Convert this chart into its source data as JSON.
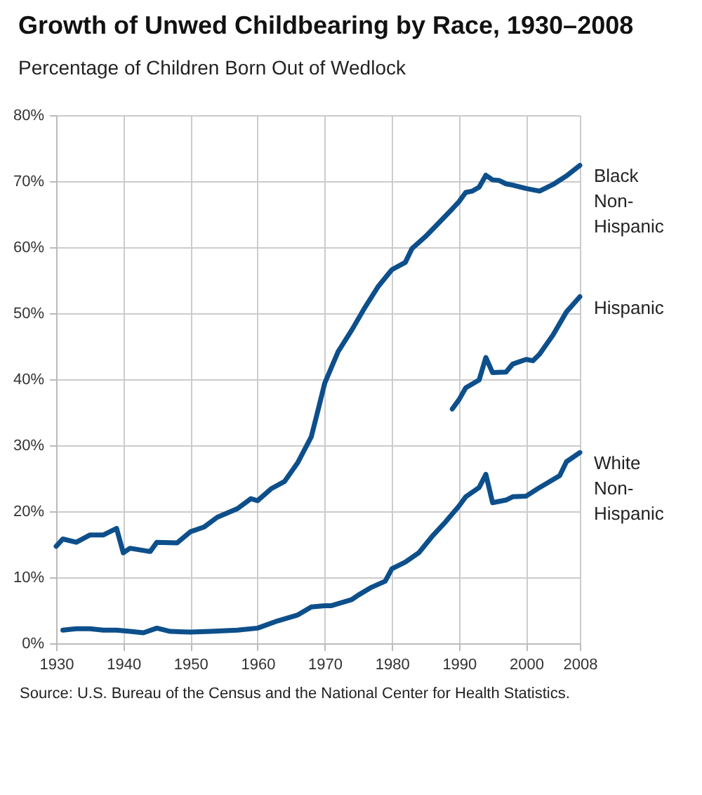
{
  "chart_data": {
    "type": "line",
    "title": "Growth of Unwed Childbearing by Race, 1930–2008",
    "subtitle": "Percentage of Children Born Out of Wedlock",
    "annotations": [
      "Source: U.S. Bureau of the Census and the National Center for Health Statistics."
    ],
    "xlim": [
      1930,
      2008
    ],
    "xticks": [
      1930,
      1940,
      1950,
      1960,
      1970,
      1980,
      1990,
      2000,
      2008
    ],
    "ylim": [
      0,
      80
    ],
    "yticks": [
      {
        "value": 0,
        "label": "0%"
      },
      {
        "value": 10,
        "label": "10%"
      },
      {
        "value": 20,
        "label": "20%"
      },
      {
        "value": 30,
        "label": "30%"
      },
      {
        "value": 40,
        "label": "40%"
      },
      {
        "value": 50,
        "label": "50%"
      },
      {
        "value": 60,
        "label": "60%"
      },
      {
        "value": 70,
        "label": "70%"
      },
      {
        "value": 80,
        "label": "80%"
      }
    ],
    "grid": true,
    "legend": false,
    "marker": "none",
    "line_style": "solid",
    "series": [
      {
        "name": "Black Non-Hispanic",
        "color": "#0d4f8b",
        "x": [
          1930,
          1931,
          1933,
          1935,
          1937,
          1939,
          1940,
          1941,
          1944,
          1945,
          1948,
          1950,
          1952,
          1954,
          1957,
          1959,
          1960,
          1962,
          1964,
          1966,
          1968,
          1969,
          1970,
          1972,
          1974,
          1976,
          1978,
          1980,
          1982,
          1983,
          1985,
          1987,
          1989,
          1990,
          1991,
          1992,
          1993,
          1994,
          1995,
          1996,
          1997,
          1998,
          2000,
          2002,
          2004,
          2006,
          2008
        ],
        "values": [
          14.7,
          15.8,
          15.3,
          16.4,
          16.4,
          17.4,
          13.7,
          14.4,
          13.9,
          15.3,
          15.2,
          16.9,
          17.6,
          19.1,
          20.4,
          21.9,
          21.6,
          23.4,
          24.5,
          27.4,
          31.3,
          35.3,
          39.4,
          44.2,
          47.4,
          50.9,
          54.1,
          56.6,
          57.7,
          59.8,
          61.6,
          63.7,
          65.8,
          66.9,
          68.3,
          68.5,
          69.1,
          70.9,
          70.2,
          70.1,
          69.6,
          69.4,
          68.9,
          68.5,
          69.5,
          70.8,
          72.4
        ]
      },
      {
        "name": "Hispanic",
        "color": "#0d4f8b",
        "x": [
          1989,
          1990,
          1991,
          1993,
          1994,
          1995,
          1997,
          1998,
          2000,
          2001,
          2002,
          2004,
          2006,
          2008
        ],
        "values": [
          35.5,
          36.9,
          38.7,
          39.9,
          43.3,
          41.0,
          41.1,
          42.3,
          43.0,
          42.8,
          43.8,
          46.7,
          50.2,
          52.5
        ]
      },
      {
        "name": "White Non-Hispanic",
        "color": "#0d4f8b",
        "x": [
          1931,
          1933,
          1935,
          1937,
          1939,
          1941,
          1943,
          1945,
          1947,
          1950,
          1953,
          1957,
          1960,
          1963,
          1966,
          1968,
          1970,
          1971,
          1974,
          1975,
          1977,
          1979,
          1980,
          1982,
          1984,
          1986,
          1988,
          1990,
          1991,
          1993,
          1994,
          1995,
          1997,
          1998,
          2000,
          2002,
          2005,
          2006,
          2008
        ],
        "values": [
          2.0,
          2.2,
          2.2,
          2.0,
          2.0,
          1.8,
          1.6,
          2.3,
          1.8,
          1.7,
          1.8,
          2.0,
          2.3,
          3.4,
          4.3,
          5.5,
          5.7,
          5.7,
          6.6,
          7.3,
          8.5,
          9.4,
          11.3,
          12.3,
          13.7,
          16.2,
          18.4,
          20.8,
          22.2,
          23.6,
          25.6,
          21.3,
          21.7,
          22.2,
          22.3,
          23.6,
          25.4,
          27.5,
          28.9
        ]
      }
    ]
  }
}
